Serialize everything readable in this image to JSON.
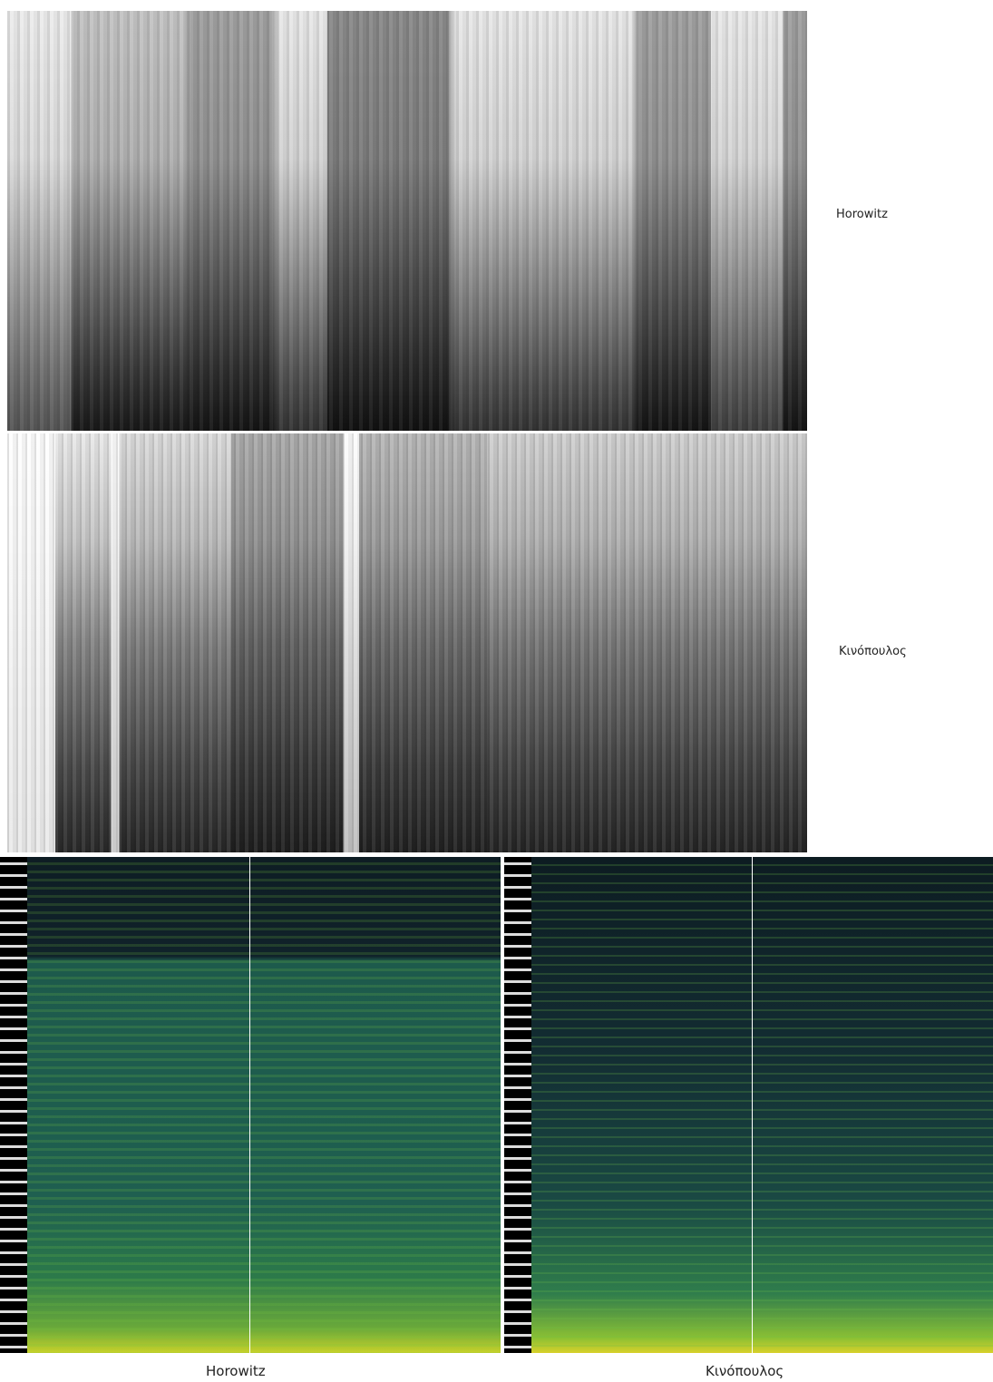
{
  "panels": [
    {
      "label": "Horowitz"
    },
    {
      "label": "Κινόπουλος"
    }
  ],
  "captions": [
    "Horowitz",
    "Κινόπουλος"
  ]
}
